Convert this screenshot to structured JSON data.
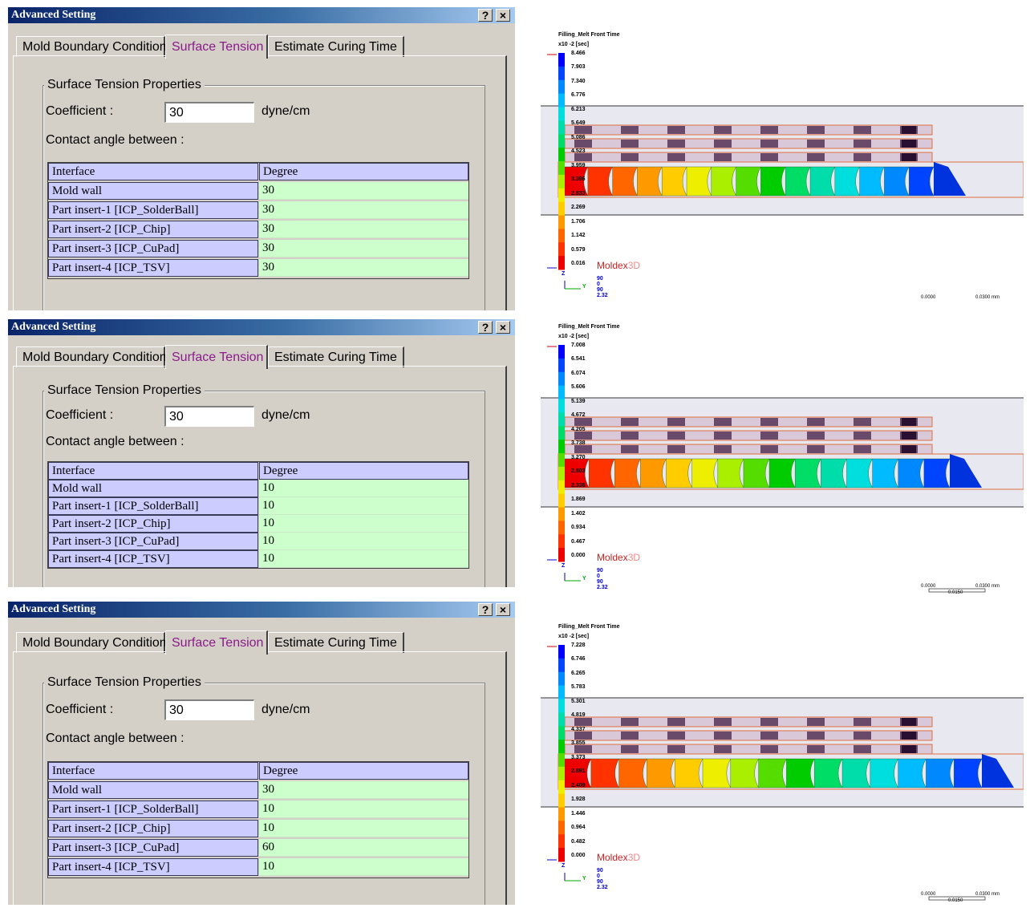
{
  "dialogs": [
    {
      "title": "Advanced Setting",
      "help_label": "?",
      "close_label": "×",
      "tabs": [
        "Mold Boundary Condition",
        "Surface Tension",
        "Estimate Curing Time"
      ],
      "group_title": "Surface Tension Properties",
      "coefficient_label": "Coefficient :",
      "coefficient_value": "30",
      "coefficient_unit": "dyne/cm",
      "contact_label": "Contact angle between :",
      "grid_headers": [
        "Interface",
        "Degree"
      ],
      "rows": [
        {
          "name": "Mold wall",
          "degree": "30"
        },
        {
          "name": "Part insert-1 [ICP_SolderBall]",
          "degree": "30"
        },
        {
          "name": "Part insert-2 [ICP_Chip]",
          "degree": "30"
        },
        {
          "name": "Part insert-3 [ICP_CuPad]",
          "degree": "30"
        },
        {
          "name": "Part insert-4 [ICP_TSV]",
          "degree": "30"
        }
      ]
    },
    {
      "title": "Advanced Setting",
      "help_label": "?",
      "close_label": "×",
      "tabs": [
        "Mold Boundary Condition",
        "Surface Tension",
        "Estimate Curing Time"
      ],
      "group_title": "Surface Tension Properties",
      "coefficient_label": "Coefficient :",
      "coefficient_value": "30",
      "coefficient_unit": "dyne/cm",
      "contact_label": "Contact angle between :",
      "grid_headers": [
        "Interface",
        "Degree"
      ],
      "rows": [
        {
          "name": "Mold wall",
          "degree": "10"
        },
        {
          "name": "Part insert-1 [ICP_SolderBall]",
          "degree": "10"
        },
        {
          "name": "Part insert-2 [ICP_Chip]",
          "degree": "10"
        },
        {
          "name": "Part insert-3 [ICP_CuPad]",
          "degree": "10"
        },
        {
          "name": "Part insert-4 [ICP_TSV]",
          "degree": "10"
        }
      ]
    },
    {
      "title": "Advanced Setting",
      "help_label": "?",
      "close_label": "×",
      "tabs": [
        "Mold Boundary Condition",
        "Surface Tension",
        "Estimate Curing Time"
      ],
      "group_title": "Surface Tension Properties",
      "coefficient_label": "Coefficient :",
      "coefficient_value": "30",
      "coefficient_unit": "dyne/cm",
      "contact_label": "Contact angle between :",
      "grid_headers": [
        "Interface",
        "Degree"
      ],
      "rows": [
        {
          "name": "Mold wall",
          "degree": "30"
        },
        {
          "name": "Part insert-1 [ICP_SolderBall]",
          "degree": "10"
        },
        {
          "name": "Part insert-2 [ICP_Chip]",
          "degree": "10"
        },
        {
          "name": "Part insert-3 [ICP_CuPad]",
          "degree": "60"
        },
        {
          "name": "Part insert-4 [ICP_TSV]",
          "degree": "10"
        }
      ]
    }
  ],
  "simulations": [
    {
      "title": "Filling_Melt Front Time",
      "unit": "x10 -2  [sec]",
      "ticks": [
        "8.466",
        "7.903",
        "7.340",
        "6.776",
        "6.213",
        "5.649",
        "5.086",
        "4.523",
        "3.959",
        "3.396",
        "2.833",
        "2.269",
        "1.706",
        "1.142",
        "0.579",
        "0.016"
      ],
      "brand": "Moldex",
      "brand_suffix": "3D",
      "axis_values": [
        "90",
        "0",
        "90",
        "2.32"
      ],
      "axis_z": "Z",
      "axis_y": "Y",
      "scale_labels": [
        "0.0000",
        "0.0300  mm"
      ],
      "scale_sub": ""
    },
    {
      "title": "Filling_Melt Front Time",
      "unit": "x10 -2  [sec]",
      "ticks": [
        "7.008",
        "6.541",
        "6.074",
        "5.606",
        "5.139",
        "4.672",
        "4.205",
        "3.738",
        "3.270",
        "2.803",
        "2.336",
        "1.869",
        "1.402",
        "0.934",
        "0.467",
        "0.000"
      ],
      "brand": "Moldex",
      "brand_suffix": "3D",
      "axis_values": [
        "90",
        "0",
        "90",
        "2.32"
      ],
      "axis_z": "Z",
      "axis_y": "Y",
      "scale_labels": [
        "0.0000",
        "0.0300  mm"
      ],
      "scale_sub": "0.0150"
    },
    {
      "title": "Filling_Melt Front Time",
      "unit": "x10 -2  [sec]",
      "ticks": [
        "7.228",
        "6.746",
        "6.265",
        "5.783",
        "5.301",
        "4.819",
        "4.337",
        "3.855",
        "3.373",
        "2.891",
        "2.409",
        "1.928",
        "1.446",
        "0.964",
        "0.482",
        "0.000"
      ],
      "brand": "Moldex",
      "brand_suffix": "3D",
      "axis_values": [
        "90",
        "0",
        "90",
        "2.32"
      ],
      "axis_z": "Z",
      "axis_y": "Y",
      "scale_labels": [
        "0.0000",
        "0.0300  mm"
      ],
      "scale_sub": "0.0150"
    }
  ],
  "colors": {
    "legend": [
      "#0000ff",
      "#0044ff",
      "#0088ff",
      "#00bbff",
      "#00dddd",
      "#00ddaa",
      "#00dd66",
      "#00cc00",
      "#55dd00",
      "#aaee00",
      "#eeee00",
      "#ffcc00",
      "#ff9900",
      "#ff6600",
      "#ff3300",
      "#ee0000"
    ]
  }
}
